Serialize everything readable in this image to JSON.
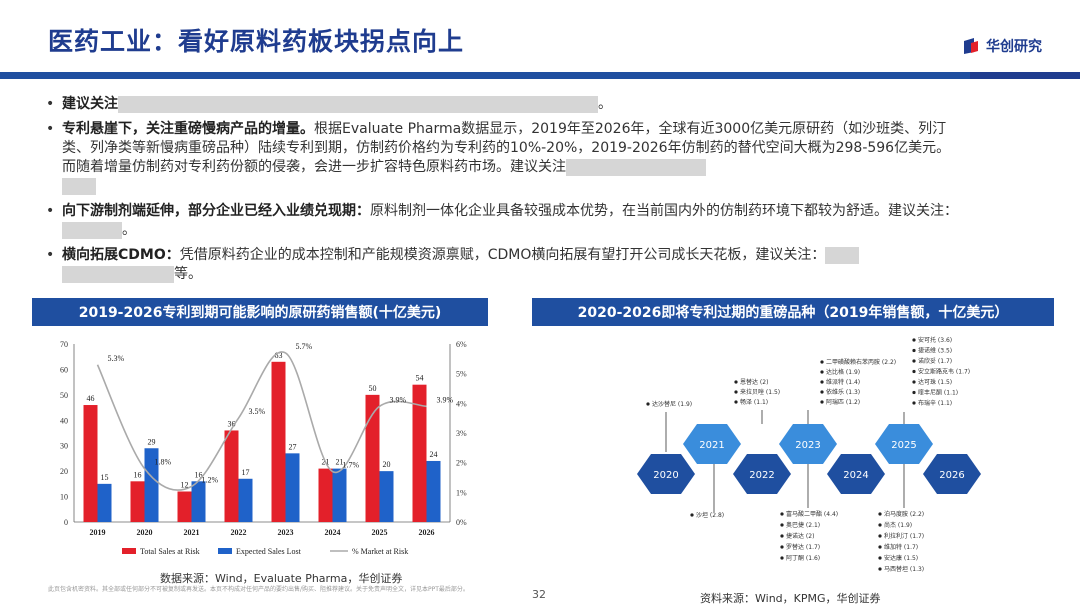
{
  "header": {
    "title": "医药工业：看好原料药板块拐点向上",
    "logo": "华创研究"
  },
  "bullets": [
    {
      "lead": "建议关注",
      "tail": "。"
    },
    {
      "lead": "专利悬崖下，关注重磅慢病产品的增量。",
      "text": "根据Evaluate Pharma数据显示，2019年至2026年，全球有近3000亿美元原研药（如沙班类、列汀类、列净类等新慢病重磅品种）陆续专利到期，仿制药价格约为专利药的10%-20%，2019-2026年仿制药的替代空间大概为298-596亿美元。而随着增量仿制药对专利药份额的侵袭，会进一步扩容特色原料药市场。建议关注"
    },
    {
      "lead": "向下游制剂端延伸，部分企业已经入业绩兑现期：",
      "text": "原料制剂一体化企业具备较强成本优势，在当前国内外的仿制药环境下都较为舒适。建议关注：",
      "tail": "。"
    },
    {
      "lead": "横向拓展CDMO：",
      "text": "凭借原料药企业的成本控制和产能规模资源禀赋，CDMO横向拓展有望打开公司成长天花板，建议关注：",
      "tail": "等。"
    }
  ],
  "left_panel": {
    "title": "2019-2026专利到期可能影响的原研药销售额(十亿美元)",
    "source": "数据来源：Wind，Evaluate Pharma，华创证券"
  },
  "right_panel": {
    "title": "2020-2026即将专利过期的重磅品种（2019年销售额，十亿美元）",
    "source": "资料来源：Wind，KPMG，华创证券"
  },
  "chart_data": {
    "type": "bar",
    "categories": [
      "2019",
      "2020",
      "2021",
      "2022",
      "2023",
      "2024",
      "2025",
      "2026"
    ],
    "series": [
      {
        "name": "Total Sales at Risk",
        "values": [
          46,
          16,
          12,
          36,
          63,
          21,
          50,
          54
        ],
        "color": "#e3202a"
      },
      {
        "name": "Expected Sales Lost",
        "values": [
          15,
          29,
          16,
          17,
          27,
          21,
          20,
          24
        ],
        "color": "#1f62c9"
      },
      {
        "name": "% Market at Risk",
        "values": [
          5.3,
          1.8,
          1.2,
          3.5,
          5.7,
          1.7,
          3.9,
          3.9
        ],
        "color": "#aaaaaa"
      }
    ],
    "pct_labels": [
      "5.3%",
      "1.8%",
      "1.2%",
      "3.5%",
      "5.7%",
      "1.7%",
      "3.9%",
      "3.9%"
    ],
    "ylim": [
      0,
      70
    ],
    "y2lim": [
      0,
      6
    ],
    "yticks": [
      "0",
      "10",
      "20",
      "30",
      "40",
      "50",
      "60",
      "70"
    ],
    "y2ticks": [
      "0%",
      "1%",
      "2%",
      "3%",
      "4%",
      "5%",
      "6%"
    ]
  },
  "timeline": {
    "years_bottom": [
      "2020",
      "2022",
      "2024",
      "2026"
    ],
    "years_top": [
      "2021",
      "2023",
      "2025"
    ],
    "groups": {
      "g2020_top": [
        "达沙替尼 (1.9)"
      ],
      "g2021_top": [
        "恩替达 (2)",
        "来拉贝唑 (1.5)",
        "畅泽 (1.1)"
      ],
      "g2022_bottom": [
        "沙坦 (2.8)"
      ],
      "g2023_top": [
        "二甲磺酸赖右苯丙胺 (2.2)",
        "达比格 (1.9)",
        "维派特 (1.4)",
        "依维乐 (1.3)",
        "阿瑞匹 (1.2)"
      ],
      "g2024_bottom": [
        "富马酸二甲酯 (4.4)",
        "奥巴捷 (2.1)",
        "捷诺达 (2)",
        "罗替达 (1.7)",
        "阿丁酮 (1.6)"
      ],
      "g2025_top": [
        "安可托 (3.6)",
        "捷诺维 (3.5)",
        "诺欣妥 (1.7)",
        "安立斯路克韦 (1.7)",
        "达可珠 (1.5)",
        "喹丰尼酮 (1.1)",
        "布瑞辛 (1.1)"
      ],
      "g2026_bottom": [
        "泊马度胺 (2.2)",
        "尚杰 (1.9)",
        "利拉利汀 (1.7)",
        "维加特 (1.7)",
        "安达康 (1.5)",
        "马西替坦 (1.3)"
      ]
    }
  },
  "footer": {
    "disclaimer": "此页包含机密资料。其全部或任何部分不可被复制或再发送。本页不构成对任何产品的要约出售/购买、阻推荐建议。关于免责声明全文，详见本PPT最后部分。",
    "page": "32"
  }
}
